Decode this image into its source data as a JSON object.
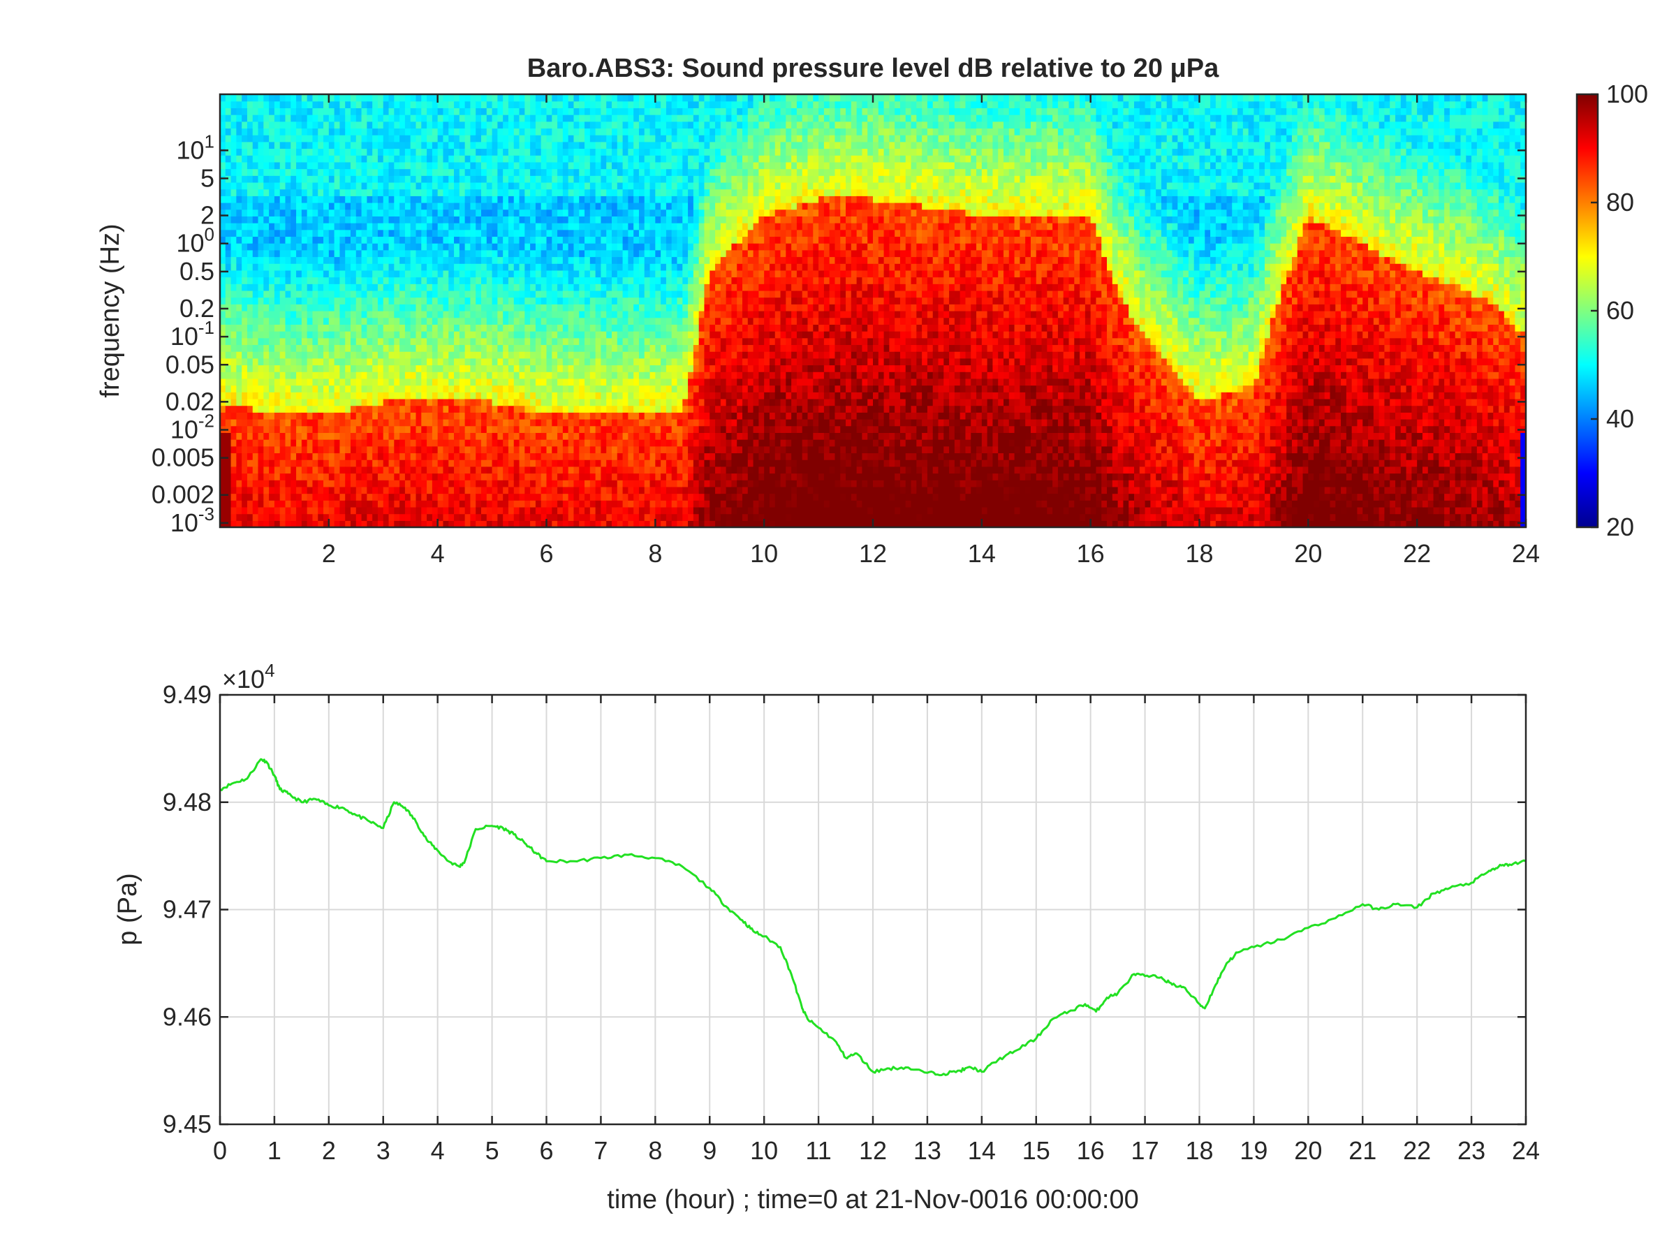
{
  "chart_data": [
    {
      "type": "heatmap",
      "title": "Baro.ABS3: Sound pressure level dB relative to 20 μPa",
      "ylabel": "frequency (Hz)",
      "yscale": "log",
      "xlim": [
        0,
        24
      ],
      "ylim": [
        0.0009,
        40
      ],
      "x_ticks": [
        2,
        4,
        6,
        8,
        10,
        12,
        14,
        16,
        18,
        20,
        22,
        24
      ],
      "x_tick_labels": [
        "2",
        "4",
        "6",
        "8",
        "10",
        "12",
        "14",
        "16",
        "18",
        "20",
        "22",
        "24"
      ],
      "y_ticks": [
        0.001,
        0.002,
        0.005,
        0.01,
        0.02,
        0.05,
        0.1,
        0.2,
        0.5,
        1,
        2,
        5,
        10
      ],
      "y_tick_labels": [
        {
          "base": "10",
          "exp": "-3"
        },
        {
          "base": "0.002",
          "exp": ""
        },
        {
          "base": "0.005",
          "exp": ""
        },
        {
          "base": "10",
          "exp": "-2"
        },
        {
          "base": "0.02",
          "exp": ""
        },
        {
          "base": "0.05",
          "exp": ""
        },
        {
          "base": "10",
          "exp": "-1"
        },
        {
          "base": "0.2",
          "exp": ""
        },
        {
          "base": "0.5",
          "exp": ""
        },
        {
          "base": "10",
          "exp": "0"
        },
        {
          "base": "2",
          "exp": ""
        },
        {
          "base": "5",
          "exp": ""
        },
        {
          "base": "10",
          "exp": "1"
        }
      ],
      "colormap": "jet",
      "colorbar": {
        "clim": [
          20,
          100
        ],
        "ticks": [
          20,
          40,
          60,
          80,
          100
        ],
        "tick_labels": [
          "20",
          "40",
          "60",
          "80",
          "100"
        ]
      },
      "activity_profile": {
        "description_hours": [
          0,
          1,
          2,
          3,
          4,
          5,
          6,
          7,
          8,
          8.5,
          9,
          9.5,
          10,
          11,
          12,
          13,
          14,
          15,
          16,
          16.5,
          17,
          17.5,
          18,
          19,
          19.5,
          20,
          21,
          22,
          23,
          23.5,
          24
        ],
        "upper_freq_hz": [
          0.02,
          0.015,
          0.015,
          0.02,
          0.02,
          0.02,
          0.015,
          0.015,
          0.015,
          0.015,
          0.5,
          1.0,
          2.0,
          3.0,
          3.0,
          2.5,
          2.0,
          2.0,
          2.0,
          0.3,
          0.1,
          0.05,
          0.02,
          0.03,
          0.3,
          2.0,
          1.0,
          0.5,
          0.3,
          0.2,
          0.1
        ]
      }
    },
    {
      "type": "line",
      "ylabel": "p (Pa)",
      "xlabel": "time (hour) ; time=0 at 21-Nov-0016 00:00:00",
      "y_multiplier": "×10",
      "y_multiplier_exp": "4",
      "xlim": [
        0,
        24
      ],
      "ylim": [
        94500,
        94900
      ],
      "x_ticks": [
        0,
        1,
        2,
        3,
        4,
        5,
        6,
        7,
        8,
        9,
        10,
        11,
        12,
        13,
        14,
        15,
        16,
        17,
        18,
        19,
        20,
        21,
        22,
        23,
        24
      ],
      "x_tick_labels": [
        "0",
        "1",
        "2",
        "3",
        "4",
        "5",
        "6",
        "7",
        "8",
        "9",
        "10",
        "11",
        "12",
        "13",
        "14",
        "15",
        "16",
        "17",
        "18",
        "19",
        "20",
        "21",
        "22",
        "23",
        "24"
      ],
      "y_ticks": [
        94500,
        94600,
        94700,
        94800,
        94900
      ],
      "y_tick_labels": [
        "9.45",
        "9.46",
        "9.47",
        "9.48",
        "9.49"
      ],
      "grid": true,
      "line_color": "#22e022",
      "series": [
        {
          "x": [
            0,
            0.25,
            0.5,
            0.75,
            0.85,
            1.0,
            1.1,
            1.25,
            1.5,
            1.75,
            2.0,
            2.25,
            2.5,
            2.75,
            3.0,
            3.2,
            3.4,
            3.6,
            3.8,
            4.0,
            4.2,
            4.4,
            4.5,
            4.7,
            5.0,
            5.2,
            5.4,
            5.6,
            5.8,
            6.0,
            6.5,
            7.0,
            7.5,
            8.0,
            8.5,
            9.0,
            9.3,
            9.6,
            9.8,
            10.0,
            10.3,
            10.5,
            10.7,
            10.8,
            11.0,
            11.3,
            11.5,
            11.7,
            12.0,
            12.3,
            12.6,
            13.0,
            13.3,
            13.6,
            13.8,
            14.0,
            14.3,
            14.6,
            15.0,
            15.3,
            15.6,
            15.9,
            16.1,
            16.3,
            16.5,
            16.8,
            17.0,
            17.3,
            17.5,
            17.7,
            18.0,
            18.1,
            18.3,
            18.5,
            18.7,
            19.0,
            19.5,
            20.0,
            20.5,
            21.0,
            21.3,
            21.6,
            22.0,
            22.3,
            22.6,
            23.0,
            23.3,
            23.5,
            23.7,
            24.0
          ],
          "values": [
            94812,
            94818,
            94822,
            94840,
            94838,
            94825,
            94812,
            94808,
            94800,
            94803,
            94797,
            94795,
            94788,
            94782,
            94776,
            94800,
            94795,
            94782,
            94765,
            94755,
            94745,
            94740,
            94745,
            94775,
            94778,
            94776,
            94770,
            94762,
            94753,
            94745,
            94745,
            94748,
            94751,
            94748,
            94740,
            94720,
            94703,
            94690,
            94680,
            94675,
            94665,
            94640,
            94608,
            94598,
            94590,
            94578,
            94562,
            94566,
            94549,
            94552,
            94553,
            94548,
            94547,
            94550,
            94553,
            94549,
            94560,
            94568,
            94580,
            94598,
            94605,
            94612,
            94605,
            94618,
            94622,
            94640,
            94638,
            94637,
            94630,
            94628,
            94612,
            94608,
            94630,
            94650,
            94660,
            94665,
            94672,
            94683,
            94692,
            94705,
            94700,
            94705,
            94702,
            94715,
            94720,
            94725,
            94735,
            94740,
            94742,
            94745
          ]
        }
      ]
    }
  ]
}
